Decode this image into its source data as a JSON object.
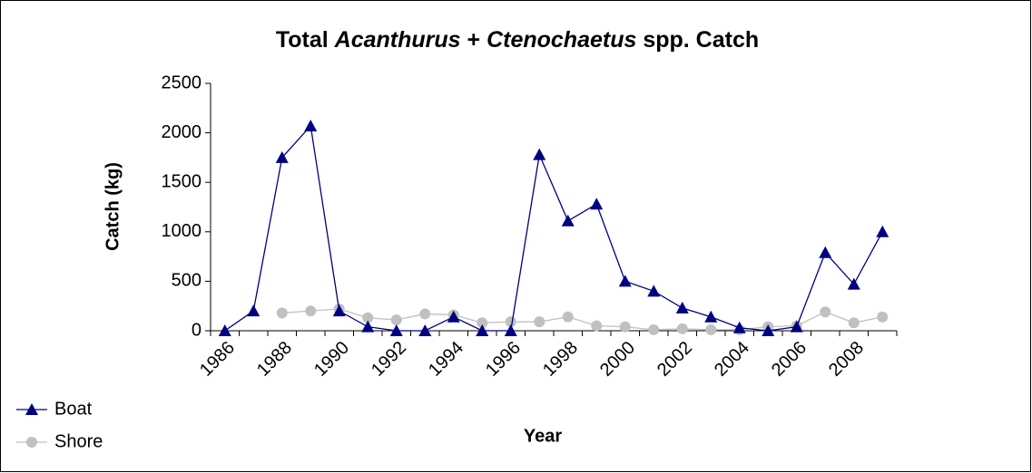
{
  "chart_data": {
    "type": "line",
    "title": [
      "Total ",
      "Acanthurus",
      " + ",
      "Ctenochaetus",
      " spp. Catch"
    ],
    "x_label": "Year",
    "y_label": "Catch (kg)",
    "categories": [
      "1986",
      null,
      "1988",
      null,
      "1990",
      null,
      "1992",
      null,
      "1994",
      null,
      "1996",
      null,
      "1998",
      null,
      "2000",
      null,
      "2002",
      null,
      "2004",
      null,
      "2006",
      null,
      "2008",
      null
    ],
    "series": [
      {
        "name": "Boat",
        "color": "#000080",
        "marker": "triangle",
        "values": [
          0,
          200,
          1750,
          2070,
          200,
          40,
          0,
          0,
          140,
          0,
          0,
          1780,
          1110,
          1280,
          500,
          400,
          230,
          140,
          30,
          0,
          40,
          790,
          470,
          1000
        ]
      },
      {
        "name": "Shore",
        "color": "#c0c0c0",
        "marker": "circle",
        "values": [
          null,
          null,
          180,
          200,
          220,
          130,
          110,
          170,
          160,
          80,
          90,
          90,
          140,
          50,
          40,
          10,
          20,
          10,
          10,
          40,
          50,
          190,
          80,
          140
        ]
      }
    ],
    "ylim": [
      0,
      2500
    ],
    "yticks": [
      0,
      500,
      1000,
      1500,
      2000,
      2500
    ],
    "legend": "bottom-left"
  }
}
